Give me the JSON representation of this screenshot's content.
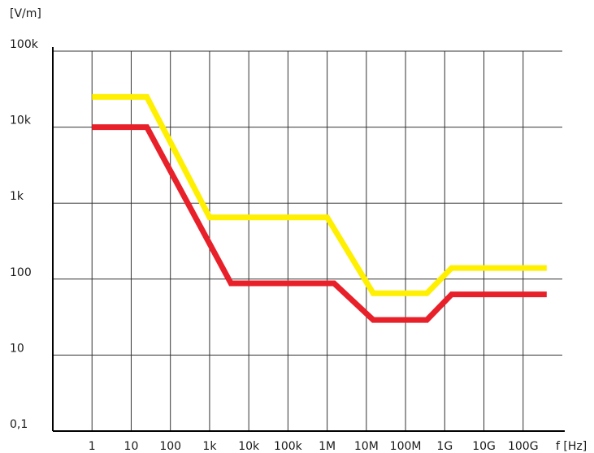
{
  "chart_data": {
    "type": "line",
    "title": "",
    "ylabel": "[V/m]",
    "xlabel": "f [Hz]",
    "x_scale": "log",
    "y_scale": "log",
    "x_tick_labels": [
      "1",
      "10",
      "100",
      "1k",
      "10k",
      "100k",
      "1M",
      "10M",
      "100M",
      "1G",
      "10G",
      "100G"
    ],
    "x_tick_values": [
      1,
      10,
      100,
      1000,
      10000,
      100000,
      1000000,
      10000000,
      100000000,
      1000000000,
      10000000000,
      100000000000
    ],
    "y_tick_labels": [
      "0,1",
      "10",
      "100",
      "1k",
      "10k",
      "100k"
    ],
    "y_tick_values": [
      0.1,
      10,
      100,
      1000,
      10000,
      100000
    ],
    "xlim": [
      0.1,
      1000000000000
    ],
    "ylim": [
      1,
      100000
    ],
    "grid": true,
    "series": [
      {
        "color": "#ffef00",
        "points": [
          [
            1,
            25000
          ],
          [
            25,
            25000
          ],
          [
            1000,
            650
          ],
          [
            1000000,
            650
          ],
          [
            15000000,
            65
          ],
          [
            350000000,
            65
          ],
          [
            1500000000,
            140
          ],
          [
            400000000000,
            140
          ]
        ]
      },
      {
        "color": "#e8202a",
        "points": [
          [
            1,
            10000
          ],
          [
            25,
            10000
          ],
          [
            3500,
            88
          ],
          [
            1500000,
            88
          ],
          [
            15000000,
            29
          ],
          [
            350000000,
            29
          ],
          [
            1500000000,
            63
          ],
          [
            400000000000,
            63
          ]
        ]
      }
    ]
  }
}
